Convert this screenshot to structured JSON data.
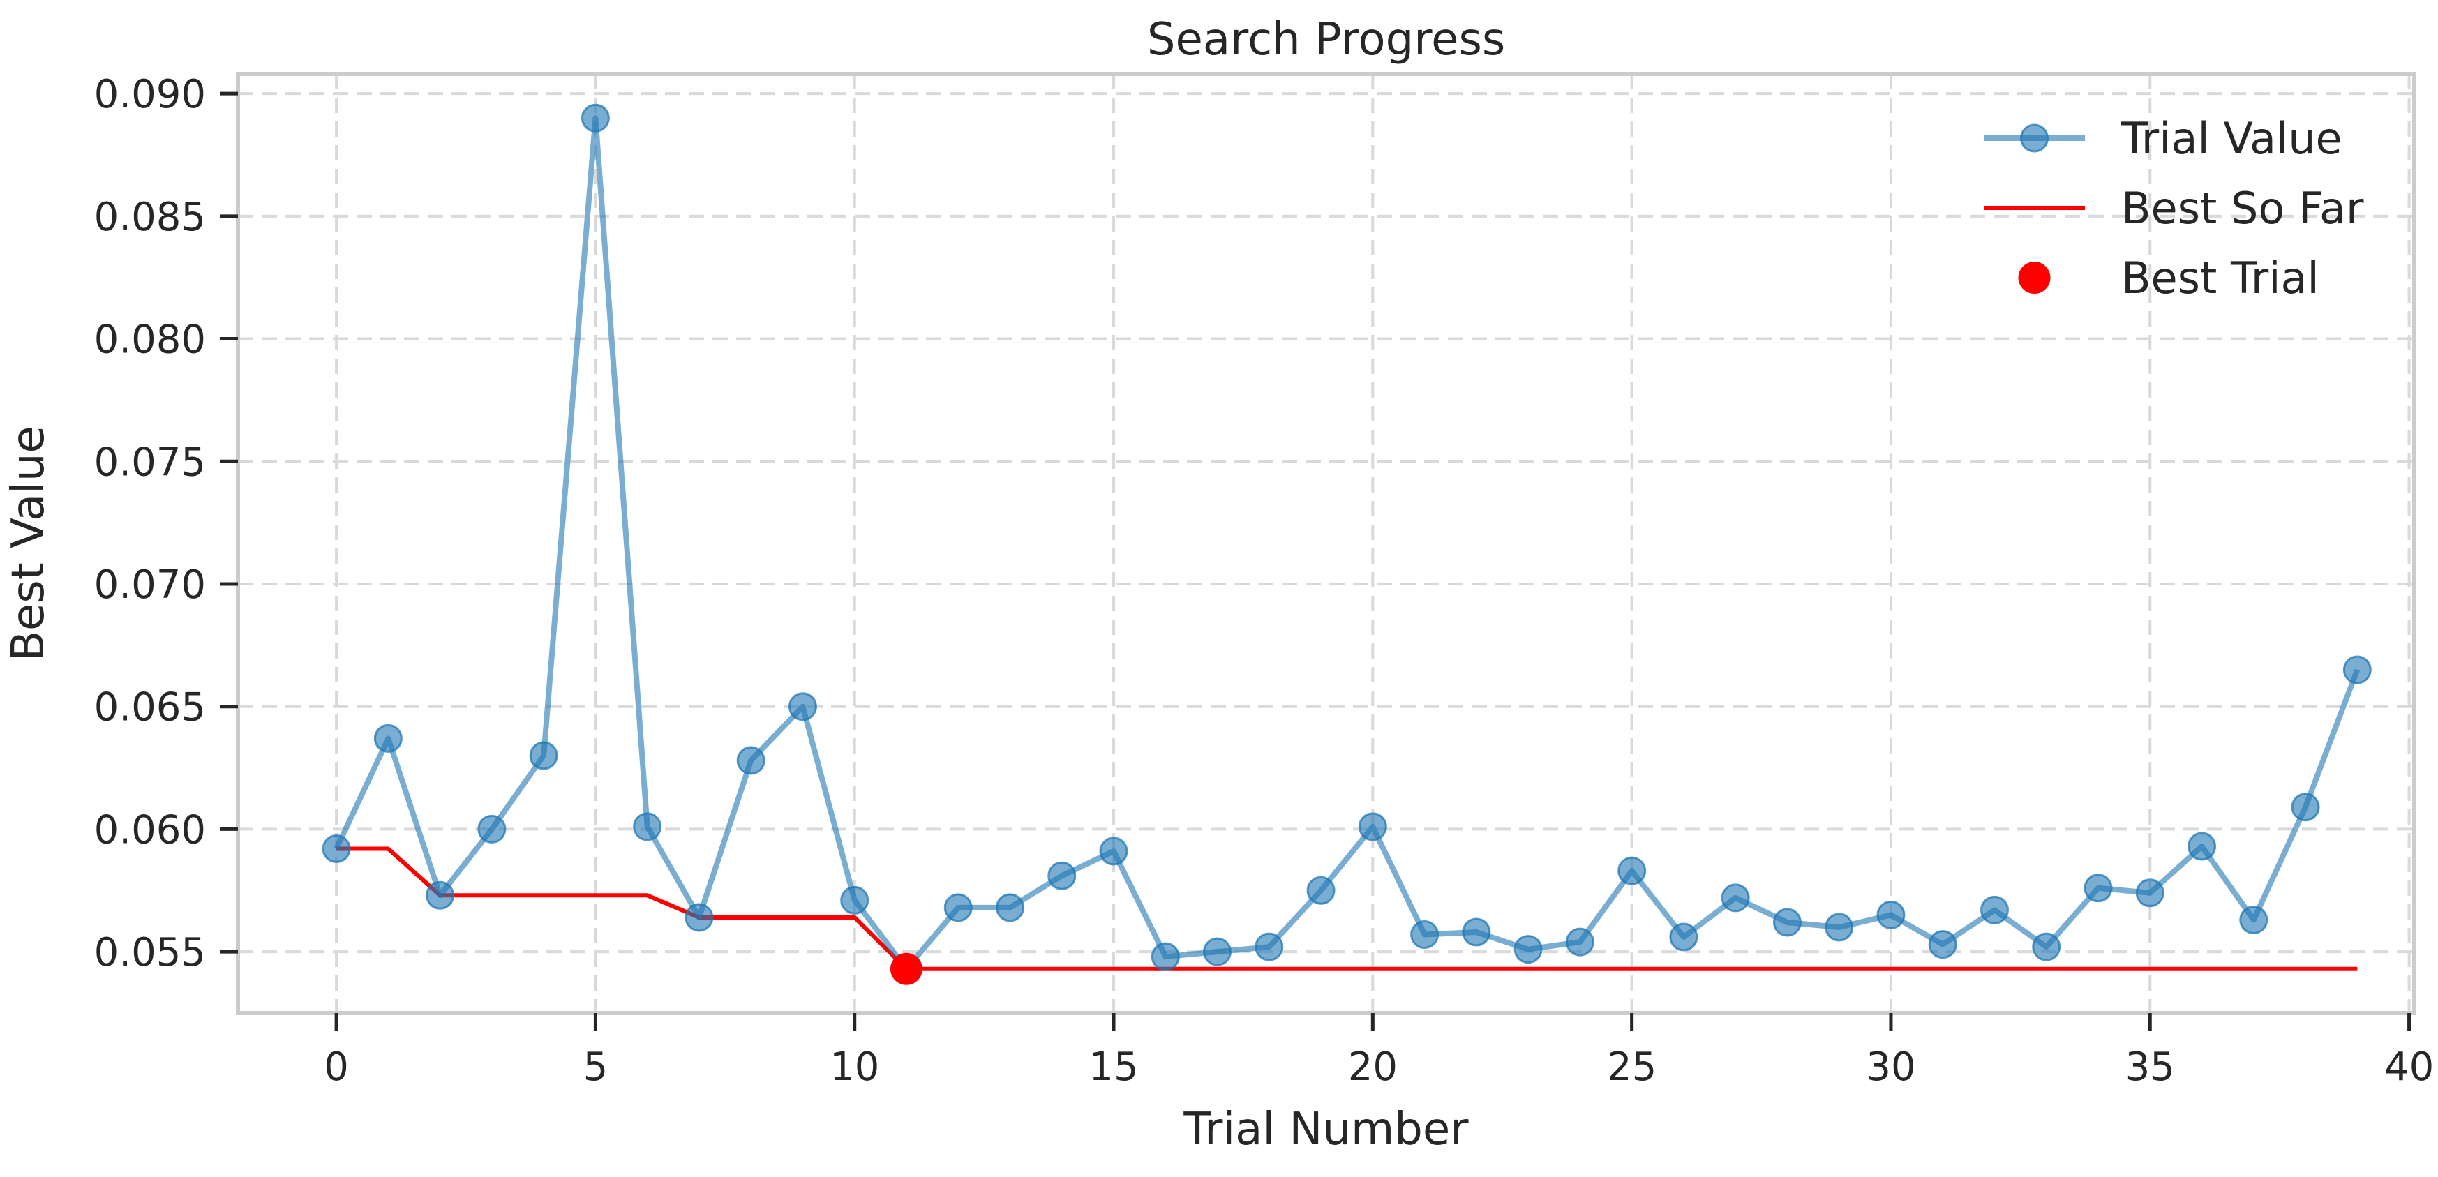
{
  "chart_data": {
    "type": "line",
    "title": "Search Progress",
    "xlabel": "Trial Number",
    "ylabel": "Best Value",
    "xlim": [
      -1.9,
      40.1
    ],
    "ylim": [
      0.0525,
      0.0908
    ],
    "xticks": [
      0,
      5,
      10,
      15,
      20,
      25,
      30,
      35,
      40
    ],
    "yticks": [
      0.055,
      0.06,
      0.065,
      0.07,
      0.075,
      0.08,
      0.085,
      0.09
    ],
    "ytick_labels": [
      "0.055",
      "0.060",
      "0.065",
      "0.070",
      "0.075",
      "0.080",
      "0.085",
      "0.090"
    ],
    "grid": true,
    "grid_style": "dashed",
    "legend_position": "top-right",
    "x": [
      0,
      1,
      2,
      3,
      4,
      5,
      6,
      7,
      8,
      9,
      10,
      11,
      12,
      13,
      14,
      15,
      16,
      17,
      18,
      19,
      20,
      21,
      22,
      23,
      24,
      25,
      26,
      27,
      28,
      29,
      30,
      31,
      32,
      33,
      34,
      35,
      36,
      37,
      38,
      39
    ],
    "series": [
      {
        "name": "Trial Value",
        "color": "#1f77b4",
        "style": "line-with-markers",
        "values": [
          0.0592,
          0.0637,
          0.0573,
          0.06,
          0.063,
          0.089,
          0.0601,
          0.0564,
          0.0628,
          0.065,
          0.0571,
          0.0543,
          0.0568,
          0.0568,
          0.0581,
          0.0591,
          0.0548,
          0.055,
          0.0552,
          0.0575,
          0.0601,
          0.0557,
          0.0558,
          0.0551,
          0.0554,
          0.0583,
          0.0556,
          0.0572,
          0.0562,
          0.056,
          0.0565,
          0.0553,
          0.0567,
          0.0552,
          0.0576,
          0.0574,
          0.0593,
          0.0563,
          0.0609,
          0.0665
        ]
      },
      {
        "name": "Best So Far",
        "color": "#ff0000",
        "style": "step-line",
        "values": [
          0.0592,
          0.0592,
          0.0573,
          0.0573,
          0.0573,
          0.0573,
          0.0573,
          0.0564,
          0.0564,
          0.0564,
          0.0564,
          0.0543,
          0.0543,
          0.0543,
          0.0543,
          0.0543,
          0.0543,
          0.0543,
          0.0543,
          0.0543,
          0.0543,
          0.0543,
          0.0543,
          0.0543,
          0.0543,
          0.0543,
          0.0543,
          0.0543,
          0.0543,
          0.0543,
          0.0543,
          0.0543,
          0.0543,
          0.0543,
          0.0543,
          0.0543,
          0.0543,
          0.0543,
          0.0543,
          0.0543
        ]
      },
      {
        "name": "Best Trial",
        "color": "#ff0000",
        "style": "point",
        "x": 11,
        "value": 0.0543
      }
    ]
  }
}
